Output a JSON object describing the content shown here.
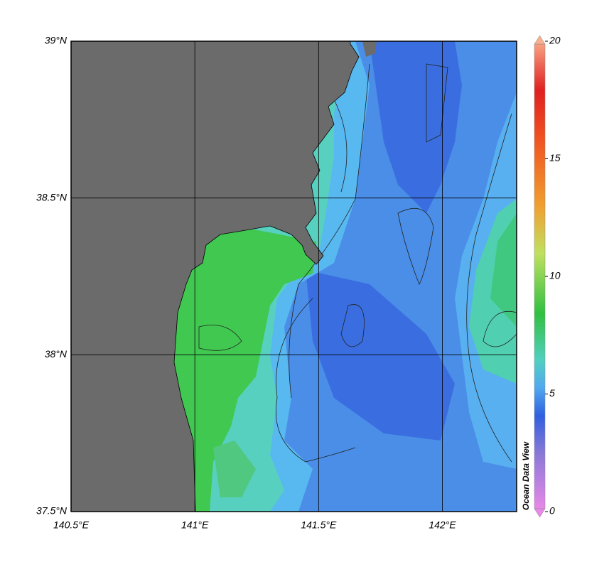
{
  "map": {
    "xlim": [
      140.5,
      142.3
    ],
    "ylim": [
      37.5,
      39
    ],
    "xticks": [
      {
        "value": 140.5,
        "label": "140.5°E"
      },
      {
        "value": 141,
        "label": "141°E"
      },
      {
        "value": 141.5,
        "label": "141.5°E"
      },
      {
        "value": 142,
        "label": "142°E"
      }
    ],
    "yticks": [
      {
        "value": 37.5,
        "label": "37.5°N"
      },
      {
        "value": 38,
        "label": "38°N"
      },
      {
        "value": 38.5,
        "label": "38.5°N"
      },
      {
        "value": 39,
        "label": "39°N"
      }
    ],
    "colorbar": {
      "lim": [
        0,
        20
      ],
      "ticks": [
        0,
        5,
        10,
        15,
        20
      ]
    },
    "credit": "Ocean Data View"
  }
}
